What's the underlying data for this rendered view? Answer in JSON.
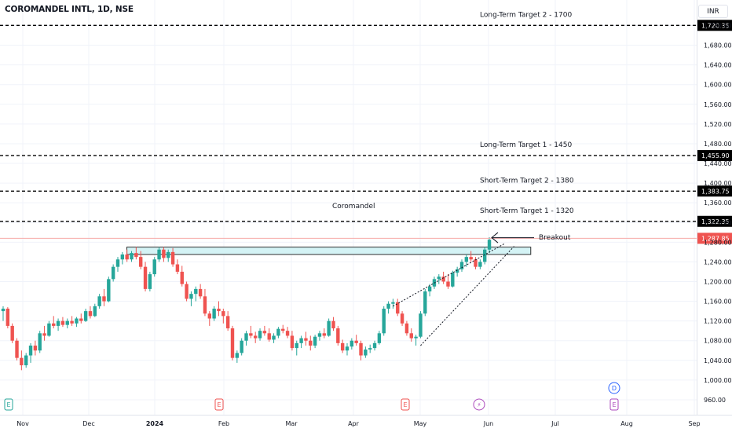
{
  "header": {
    "symbol_title": "COROMANDEL INTL, 1D, NSE",
    "currency_label": "INR"
  },
  "colors": {
    "up": "#26a69a",
    "down": "#ef5350",
    "level_line": "#000000",
    "current_price_line": "#f7a9a7",
    "current_price_tag": "#ef5350",
    "resistance_zone_fill": "#d4f3f5",
    "resistance_zone_border": "#2f2f2f",
    "event_earnings": "#ef5350",
    "event_dividend": "#2962ff",
    "event_split": "#ab47bc"
  },
  "chart_data": {
    "type": "candlestick",
    "title": "COROMANDEL INTL, 1D, NSE",
    "currency": "INR",
    "x_tick_labels": [
      "Nov",
      "Dec",
      "2024",
      "Feb",
      "Mar",
      "Apr",
      "May",
      "Jun",
      "Jul",
      "Aug",
      "Sep"
    ],
    "y_tick_labels": [
      "960.00",
      "1,000.00",
      "1,040.00",
      "1,080.00",
      "1,120.00",
      "1,160.00",
      "1,200.00",
      "1,240.00",
      "1,280.00",
      "1,320.00",
      "1,360.00",
      "1,400.00",
      "1,440.00",
      "1,480.00",
      "1,520.00",
      "1,560.00",
      "1,600.00",
      "1,640.00",
      "1,680.00",
      "1,720.00"
    ],
    "ylim": [
      940,
      1730
    ],
    "grid": true,
    "candles_ohlc": [
      [
        1140,
        1150,
        1120,
        1145
      ],
      [
        1145,
        1148,
        1105,
        1110
      ],
      [
        1110,
        1115,
        1075,
        1080
      ],
      [
        1080,
        1085,
        1040,
        1045
      ],
      [
        1045,
        1060,
        1020,
        1030
      ],
      [
        1030,
        1055,
        1025,
        1050
      ],
      [
        1050,
        1075,
        1035,
        1070
      ],
      [
        1070,
        1080,
        1050,
        1060
      ],
      [
        1060,
        1100,
        1055,
        1095
      ],
      [
        1095,
        1110,
        1080,
        1090
      ],
      [
        1090,
        1120,
        1088,
        1115
      ],
      [
        1115,
        1130,
        1105,
        1110
      ],
      [
        1110,
        1125,
        1100,
        1120
      ],
      [
        1120,
        1128,
        1108,
        1112
      ],
      [
        1112,
        1125,
        1105,
        1120
      ],
      [
        1120,
        1130,
        1110,
        1115
      ],
      [
        1115,
        1128,
        1108,
        1125
      ],
      [
        1125,
        1135,
        1115,
        1120
      ],
      [
        1120,
        1145,
        1118,
        1140
      ],
      [
        1140,
        1150,
        1125,
        1130
      ],
      [
        1130,
        1155,
        1128,
        1150
      ],
      [
        1150,
        1175,
        1145,
        1170
      ],
      [
        1170,
        1185,
        1150,
        1160
      ],
      [
        1160,
        1210,
        1158,
        1205
      ],
      [
        1205,
        1235,
        1200,
        1230
      ],
      [
        1230,
        1250,
        1220,
        1245
      ],
      [
        1245,
        1260,
        1235,
        1255
      ],
      [
        1255,
        1265,
        1240,
        1245
      ],
      [
        1245,
        1262,
        1240,
        1258
      ],
      [
        1258,
        1270,
        1245,
        1250
      ],
      [
        1250,
        1262,
        1225,
        1230
      ],
      [
        1230,
        1240,
        1180,
        1185
      ],
      [
        1185,
        1220,
        1180,
        1215
      ],
      [
        1215,
        1250,
        1210,
        1245
      ],
      [
        1245,
        1270,
        1240,
        1265
      ],
      [
        1265,
        1270,
        1240,
        1248
      ],
      [
        1248,
        1265,
        1240,
        1260
      ],
      [
        1260,
        1268,
        1230,
        1235
      ],
      [
        1235,
        1245,
        1215,
        1220
      ],
      [
        1220,
        1232,
        1190,
        1195
      ],
      [
        1195,
        1200,
        1160,
        1165
      ],
      [
        1165,
        1180,
        1150,
        1175
      ],
      [
        1175,
        1190,
        1160,
        1185
      ],
      [
        1185,
        1195,
        1165,
        1170
      ],
      [
        1170,
        1185,
        1130,
        1135
      ],
      [
        1135,
        1140,
        1110,
        1125
      ],
      [
        1125,
        1150,
        1120,
        1145
      ],
      [
        1145,
        1160,
        1130,
        1140
      ],
      [
        1140,
        1145,
        1115,
        1130
      ],
      [
        1130,
        1140,
        1100,
        1105
      ],
      [
        1105,
        1110,
        1040,
        1045
      ],
      [
        1045,
        1060,
        1035,
        1055
      ],
      [
        1055,
        1085,
        1050,
        1080
      ],
      [
        1080,
        1100,
        1070,
        1095
      ],
      [
        1095,
        1110,
        1085,
        1090
      ],
      [
        1090,
        1098,
        1075,
        1085
      ],
      [
        1085,
        1105,
        1080,
        1100
      ],
      [
        1100,
        1110,
        1090,
        1095
      ],
      [
        1095,
        1105,
        1078,
        1082
      ],
      [
        1082,
        1095,
        1075,
        1090
      ],
      [
        1090,
        1108,
        1085,
        1104
      ],
      [
        1104,
        1112,
        1095,
        1100
      ],
      [
        1100,
        1108,
        1085,
        1090
      ],
      [
        1090,
        1100,
        1060,
        1065
      ],
      [
        1065,
        1080,
        1050,
        1075
      ],
      [
        1075,
        1090,
        1065,
        1085
      ],
      [
        1085,
        1098,
        1070,
        1080
      ],
      [
        1080,
        1090,
        1060,
        1070
      ],
      [
        1070,
        1092,
        1065,
        1088
      ],
      [
        1088,
        1100,
        1080,
        1095
      ],
      [
        1095,
        1105,
        1085,
        1090
      ],
      [
        1090,
        1125,
        1088,
        1120
      ],
      [
        1120,
        1128,
        1100,
        1105
      ],
      [
        1105,
        1110,
        1070,
        1075
      ],
      [
        1075,
        1082,
        1055,
        1060
      ],
      [
        1060,
        1075,
        1050,
        1068
      ],
      [
        1068,
        1085,
        1062,
        1080
      ],
      [
        1080,
        1092,
        1070,
        1075
      ],
      [
        1075,
        1080,
        1040,
        1050
      ],
      [
        1050,
        1068,
        1045,
        1062
      ],
      [
        1062,
        1072,
        1055,
        1065
      ],
      [
        1065,
        1080,
        1060,
        1075
      ],
      [
        1075,
        1100,
        1072,
        1095
      ],
      [
        1095,
        1150,
        1090,
        1145
      ],
      [
        1145,
        1160,
        1135,
        1155
      ],
      [
        1155,
        1165,
        1145,
        1158
      ],
      [
        1158,
        1165,
        1130,
        1135
      ],
      [
        1135,
        1140,
        1110,
        1115
      ],
      [
        1115,
        1120,
        1090,
        1095
      ],
      [
        1095,
        1105,
        1078,
        1085
      ],
      [
        1085,
        1092,
        1070,
        1088
      ],
      [
        1088,
        1140,
        1085,
        1135
      ],
      [
        1135,
        1185,
        1130,
        1180
      ],
      [
        1180,
        1195,
        1170,
        1190
      ],
      [
        1190,
        1210,
        1185,
        1205
      ],
      [
        1205,
        1215,
        1195,
        1210
      ],
      [
        1210,
        1220,
        1195,
        1200
      ],
      [
        1200,
        1215,
        1185,
        1190
      ],
      [
        1190,
        1222,
        1188,
        1218
      ],
      [
        1218,
        1230,
        1210,
        1225
      ],
      [
        1225,
        1245,
        1220,
        1240
      ],
      [
        1240,
        1255,
        1230,
        1250
      ],
      [
        1250,
        1262,
        1240,
        1245
      ],
      [
        1245,
        1250,
        1225,
        1230
      ],
      [
        1230,
        1245,
        1225,
        1240
      ],
      [
        1240,
        1270,
        1235,
        1265
      ],
      [
        1265,
        1290,
        1258,
        1285
      ]
    ],
    "horizontal_levels": [
      {
        "label": "Long-Term Target 2 - 1700",
        "price": 1720.35,
        "price_label": "1,720.35"
      },
      {
        "label": "Long-Term Target 1 - 1450",
        "price": 1455.9,
        "price_label": "1,455.90"
      },
      {
        "label": "Short-Term Target 2 - 1380",
        "price": 1383.75,
        "price_label": "1,383.75"
      },
      {
        "label": "Short-Term Target 1 - 1320",
        "price": 1322.35,
        "price_label": "1,322.35"
      }
    ],
    "current_price": {
      "value": 1287.85,
      "label": "1,287.85"
    },
    "resistance_zone": {
      "low": 1255,
      "high": 1270,
      "start_bar": 28,
      "end_bar": 114
    },
    "trendlines": [
      {
        "from_bar": 85,
        "from_price": 1150,
        "to_bar": 107,
        "to_price": 1268
      },
      {
        "from_bar": 91,
        "from_price": 1070,
        "to_bar": 109,
        "to_price": 1262
      }
    ],
    "annotations": {
      "pattern_label": "Coromandel",
      "breakout_label": "Breakout"
    },
    "events": [
      {
        "type": "earnings",
        "symbol": "E",
        "month": "Nov"
      },
      {
        "type": "earnings",
        "symbol": "E",
        "month": "Feb"
      },
      {
        "type": "earnings",
        "symbol": "E",
        "month": "May"
      },
      {
        "type": "split",
        "symbol": "⚡",
        "month": "Jun"
      },
      {
        "type": "dividend",
        "symbol": "D",
        "month": "Aug"
      },
      {
        "type": "earnings",
        "symbol": "E",
        "month": "Aug"
      }
    ]
  }
}
